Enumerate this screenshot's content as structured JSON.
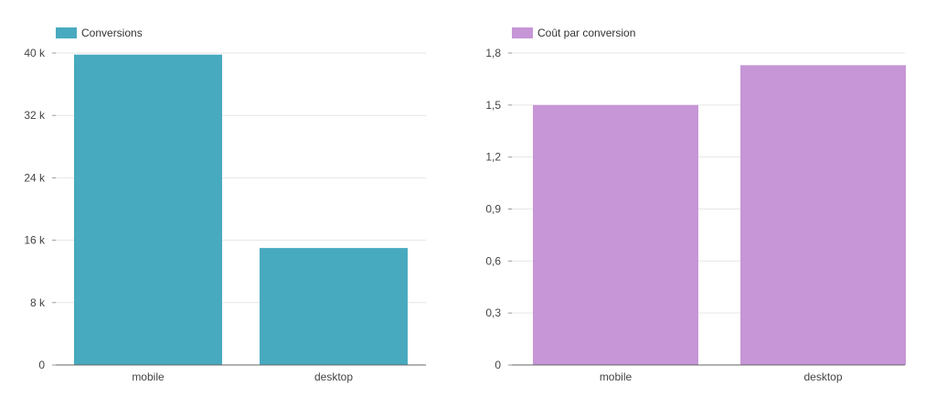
{
  "chart_data": [
    {
      "type": "bar",
      "categories": [
        "mobile",
        "desktop"
      ],
      "series": [
        {
          "name": "Conversions",
          "values": [
            39800,
            15000
          ],
          "color": "#48aabf"
        }
      ],
      "yticks": [
        "0",
        "8 k",
        "16 k",
        "24 k",
        "32 k",
        "40 k"
      ],
      "ylim": [
        0,
        40000
      ],
      "grid": true,
      "legend": "top-left"
    },
    {
      "type": "bar",
      "categories": [
        "mobile",
        "desktop"
      ],
      "series": [
        {
          "name": "Coût par conversion",
          "values": [
            1.5,
            1.73
          ],
          "color": "#c696d6"
        }
      ],
      "yticks": [
        "0",
        "0,3",
        "0,6",
        "0,9",
        "1,2",
        "1,5",
        "1,8"
      ],
      "ylim": [
        0,
        1.8
      ],
      "grid": true,
      "legend": "top-left"
    }
  ]
}
